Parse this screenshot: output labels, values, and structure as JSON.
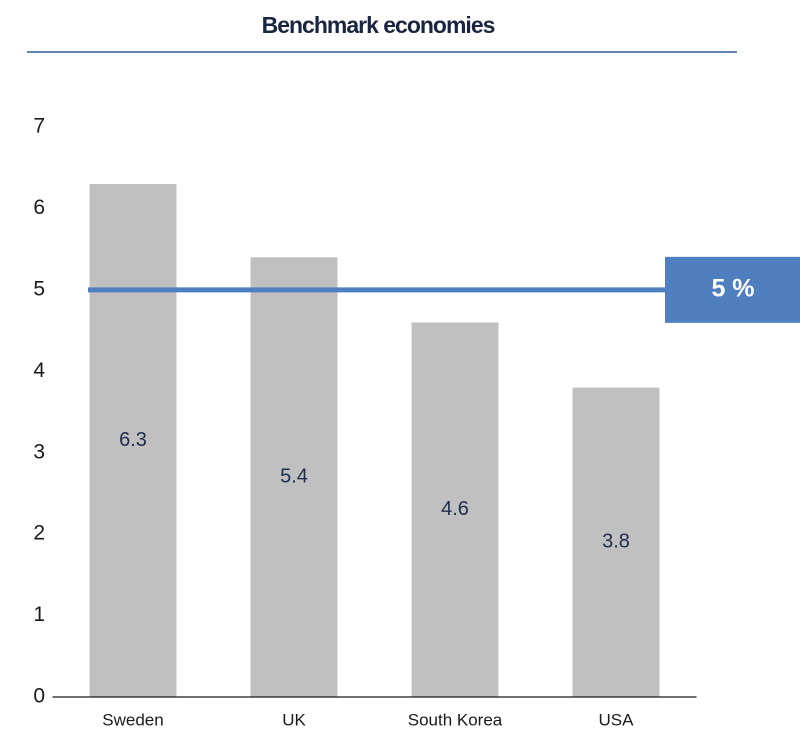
{
  "chart_data": {
    "type": "bar",
    "title": "Benchmark economies",
    "categories": [
      "Sweden",
      "UK",
      "South Korea",
      "USA"
    ],
    "values": [
      6.3,
      5.4,
      4.6,
      3.8
    ],
    "color": "#c0c0c0",
    "ylim": [
      0,
      7
    ],
    "yticks": [
      0,
      1,
      2,
      3,
      4,
      5,
      6,
      7
    ],
    "grid": false,
    "reference_line": {
      "value": 5,
      "label": "5 %",
      "color": "#4f7fbf"
    }
  }
}
